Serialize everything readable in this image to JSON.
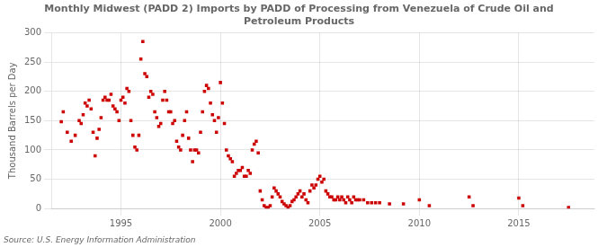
{
  "chart_data": {
    "type": "scatter",
    "title": "Monthly Midwest (PADD 2) Imports by PADD of Processing from Venezuela of Crude Oil and\nPetroleum Products",
    "ylabel": "Thousand Barrels per Day",
    "annotation": "Source: U.S. Energy Information Administration",
    "color": "#cc0000",
    "marker": "square",
    "grid": true,
    "xlim": [
      1991.5,
      2018.8
    ],
    "ylim": [
      0,
      300
    ],
    "xticks": [
      1995,
      2000,
      2005,
      2010,
      2015
    ],
    "yticks": [
      0,
      50,
      100,
      150,
      200,
      250,
      300
    ],
    "x": [
      1992.0,
      1992.1,
      1992.3,
      1992.5,
      1992.7,
      1992.9,
      1993.0,
      1993.1,
      1993.2,
      1993.3,
      1993.4,
      1993.5,
      1993.6,
      1993.7,
      1993.8,
      1993.9,
      1994.0,
      1994.1,
      1994.2,
      1994.3,
      1994.4,
      1994.5,
      1994.6,
      1994.7,
      1994.8,
      1994.9,
      1995.0,
      1995.1,
      1995.2,
      1995.3,
      1995.4,
      1995.5,
      1995.6,
      1995.7,
      1995.8,
      1995.9,
      1996.0,
      1996.1,
      1996.2,
      1996.3,
      1996.4,
      1996.5,
      1996.6,
      1996.7,
      1996.8,
      1996.9,
      1997.0,
      1997.1,
      1997.2,
      1997.3,
      1997.4,
      1997.5,
      1997.6,
      1997.7,
      1997.8,
      1997.9,
      1998.0,
      1998.1,
      1998.2,
      1998.3,
      1998.4,
      1998.5,
      1998.6,
      1998.7,
      1998.8,
      1998.9,
      1999.0,
      1999.1,
      1999.2,
      1999.3,
      1999.4,
      1999.5,
      1999.6,
      1999.7,
      1999.8,
      1999.9,
      2000.0,
      2000.1,
      2000.2,
      2000.3,
      2000.4,
      2000.5,
      2000.6,
      2000.7,
      2000.8,
      2000.9,
      2001.0,
      2001.1,
      2001.2,
      2001.3,
      2001.4,
      2001.5,
      2001.6,
      2001.7,
      2001.8,
      2001.9,
      2002.0,
      2002.1,
      2002.2,
      2002.3,
      2002.4,
      2002.5,
      2002.6,
      2002.7,
      2002.8,
      2002.9,
      2003.0,
      2003.1,
      2003.2,
      2003.3,
      2003.4,
      2003.5,
      2003.6,
      2003.7,
      2003.8,
      2003.9,
      2004.0,
      2004.1,
      2004.2,
      2004.3,
      2004.4,
      2004.5,
      2004.6,
      2004.7,
      2004.8,
      2004.9,
      2005.0,
      2005.1,
      2005.2,
      2005.3,
      2005.4,
      2005.5,
      2005.6,
      2005.7,
      2005.8,
      2005.9,
      2006.0,
      2006.1,
      2006.2,
      2006.3,
      2006.4,
      2006.5,
      2006.6,
      2006.7,
      2006.8,
      2006.9,
      2007.0,
      2007.2,
      2007.4,
      2007.6,
      2007.8,
      2008.0,
      2008.5,
      2009.2,
      2010.0,
      2010.5,
      2012.5,
      2012.7,
      2015.0,
      2015.2,
      2017.5
    ],
    "values": [
      148,
      165,
      130,
      115,
      125,
      150,
      145,
      160,
      180,
      175,
      185,
      170,
      130,
      90,
      120,
      135,
      155,
      185,
      190,
      185,
      185,
      195,
      175,
      170,
      165,
      150,
      185,
      190,
      180,
      205,
      200,
      150,
      125,
      105,
      100,
      125,
      255,
      285,
      230,
      225,
      190,
      200,
      195,
      165,
      155,
      140,
      145,
      185,
      200,
      185,
      165,
      165,
      145,
      150,
      115,
      105,
      100,
      125,
      150,
      165,
      120,
      100,
      80,
      100,
      100,
      95,
      130,
      165,
      200,
      210,
      205,
      180,
      160,
      150,
      130,
      155,
      215,
      180,
      145,
      100,
      90,
      85,
      80,
      55,
      60,
      65,
      65,
      70,
      55,
      55,
      65,
      60,
      100,
      110,
      115,
      95,
      30,
      15,
      5,
      2,
      2,
      5,
      20,
      35,
      30,
      25,
      20,
      12,
      8,
      5,
      2,
      5,
      12,
      15,
      20,
      25,
      30,
      20,
      25,
      15,
      10,
      30,
      40,
      35,
      40,
      50,
      55,
      45,
      50,
      30,
      25,
      20,
      20,
      15,
      15,
      20,
      15,
      20,
      15,
      10,
      20,
      15,
      10,
      20,
      15,
      15,
      15,
      15,
      10,
      10,
      10,
      10,
      8,
      8,
      15,
      5,
      20,
      5,
      18,
      5,
      2
    ]
  }
}
